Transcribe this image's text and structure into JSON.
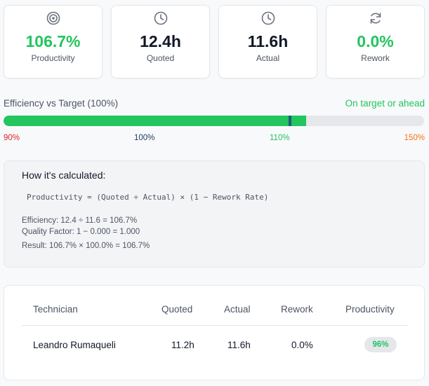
{
  "metrics": [
    {
      "icon": "target-icon",
      "value": "106.7%",
      "label": "Productivity",
      "color": "#22c55e"
    },
    {
      "icon": "clock-icon",
      "value": "12.4h",
      "label": "Quoted",
      "color": "#111827"
    },
    {
      "icon": "clock-icon",
      "value": "11.6h",
      "label": "Actual",
      "color": "#111827"
    },
    {
      "icon": "refresh-icon",
      "value": "0.0%",
      "label": "Rework",
      "color": "#22c55e"
    }
  ],
  "efficiency": {
    "title": "Efficiency vs Target (100%)",
    "status": "On target or ahead",
    "value_percent": 106.7,
    "target_percent": 100,
    "min_percent": 90,
    "max_percent": 150,
    "ticks": [
      "90%",
      "100%",
      "110%",
      "150%"
    ]
  },
  "calculation": {
    "title": "How it's calculated:",
    "formula": "Productivity = (Quoted ÷ Actual) × (1 − Rework Rate)",
    "efficiency_line": "Efficiency: 12.4 ÷ 11.6 = 106.7%",
    "quality_line": "Quality Factor: 1 − 0.000 = 1.000",
    "result_line": "Result: 106.7% × 100.0% = 106.7%"
  },
  "table": {
    "headers": {
      "technician": "Technician",
      "quoted": "Quoted",
      "actual": "Actual",
      "rework": "Rework",
      "productivity": "Productivity"
    },
    "rows": [
      {
        "technician": "Leandro Rumaqueli",
        "quoted": "11.2h",
        "actual": "11.6h",
        "rework": "0.0%",
        "productivity": "96%"
      }
    ]
  }
}
